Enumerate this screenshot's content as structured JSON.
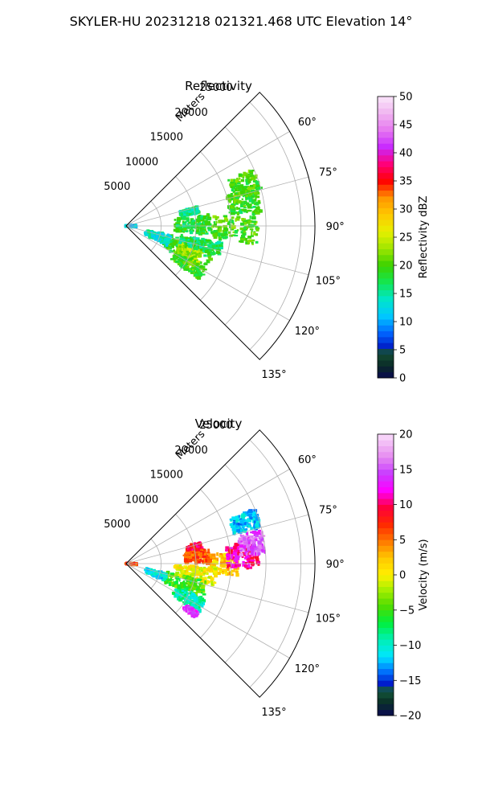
{
  "figure": {
    "suptitle": "SKYLER-HU  20231218  021321.468 UTC Elevation 14°"
  },
  "chart_data": [
    {
      "type": "heatmap",
      "projection": "polar-sector",
      "title": "Reflectivity",
      "radial_label": "Meters",
      "radial_ticks": [
        5000,
        10000,
        15000,
        20000,
        25000
      ],
      "radial_tick_labels": [
        "5000",
        "10000",
        "15000",
        "20000",
        "25000"
      ],
      "rlim": [
        0,
        27000
      ],
      "angle_ticks": [
        60,
        75,
        90,
        105,
        120,
        135
      ],
      "angle_tick_labels": [
        "60°",
        "75°",
        "90°",
        "105°",
        "120°",
        "135°"
      ],
      "angle_range": [
        45,
        135
      ],
      "grid": true,
      "colorbar": {
        "label": "Reflectivity dBZ",
        "range": [
          0,
          50
        ],
        "ticks": [
          0,
          5,
          10,
          15,
          20,
          25,
          30,
          35,
          40,
          45,
          50
        ],
        "tick_labels": [
          "0",
          "5",
          "10",
          "15",
          "20",
          "25",
          "30",
          "35",
          "40",
          "45",
          "50"
        ]
      },
      "echo_regions": [
        {
          "az": [
            84,
            98
          ],
          "r": [
            12000,
            19000
          ],
          "value": 20
        },
        {
          "az": [
            73,
            84
          ],
          "r": [
            15000,
            19500
          ],
          "value": 19
        },
        {
          "az": [
            66,
            76
          ],
          "r": [
            16000,
            20000
          ],
          "value": 20
        },
        {
          "az": [
            82,
            96
          ],
          "r": [
            7000,
            12000
          ],
          "value": 18
        },
        {
          "az": [
            102,
            120
          ],
          "r": [
            6000,
            13000
          ],
          "value": 19
        },
        {
          "az": [
            104,
            118
          ],
          "r": [
            8000,
            11500
          ],
          "value": 23
        },
        {
          "az": [
            118,
            126
          ],
          "r": [
            8000,
            13000
          ],
          "value": 20
        },
        {
          "az": [
            102,
            115
          ],
          "r": [
            3000,
            6500
          ],
          "value": 14
        },
        {
          "az": [
            100,
            108
          ],
          "r": [
            8000,
            14000
          ],
          "value": 17
        },
        {
          "az": [
            86,
            96
          ],
          "r": [
            0,
            1400
          ],
          "value": 11
        },
        {
          "az": [
            75,
            80
          ],
          "r": [
            8000,
            10500
          ],
          "value": 16
        }
      ]
    },
    {
      "type": "heatmap",
      "projection": "polar-sector",
      "title": "Velocity",
      "radial_label": "Meters",
      "radial_ticks": [
        5000,
        10000,
        15000,
        20000,
        25000
      ],
      "radial_tick_labels": [
        "5000",
        "10000",
        "15000",
        "20000",
        "25000"
      ],
      "rlim": [
        0,
        27000
      ],
      "angle_ticks": [
        60,
        75,
        90,
        105,
        120,
        135
      ],
      "angle_tick_labels": [
        "60°",
        "75°",
        "90°",
        "105°",
        "120°",
        "135°"
      ],
      "angle_range": [
        45,
        135
      ],
      "grid": true,
      "colorbar": {
        "label": "Velocity (m/s)",
        "range": [
          -20,
          20
        ],
        "ticks": [
          -20,
          -15,
          -10,
          -5,
          0,
          5,
          10,
          15,
          20
        ],
        "tick_labels": [
          "−20",
          "−15",
          "−10",
          "−5",
          "0",
          "5",
          "10",
          "15",
          "20"
        ]
      },
      "echo_regions": [
        {
          "az": [
            84,
            96
          ],
          "r": [
            12000,
            16000
          ],
          "value": 2
        },
        {
          "az": [
            80,
            92
          ],
          "r": [
            14500,
            19000
          ],
          "value": 11
        },
        {
          "az": [
            76,
            86
          ],
          "r": [
            16500,
            20000
          ],
          "value": 15
        },
        {
          "az": [
            67,
            75
          ],
          "r": [
            16000,
            20000
          ],
          "value": -12
        },
        {
          "az": [
            74,
            80
          ],
          "r": [
            9000,
            11000
          ],
          "value": 9
        },
        {
          "az": [
            80,
            90
          ],
          "r": [
            8500,
            12000
          ],
          "value": 6
        },
        {
          "az": [
            92,
            104
          ],
          "r": [
            7000,
            13000
          ],
          "value": 0
        },
        {
          "az": [
            102,
            116
          ],
          "r": [
            6000,
            12000
          ],
          "value": -5
        },
        {
          "az": [
            114,
            124
          ],
          "r": [
            8000,
            12500
          ],
          "value": -9
        },
        {
          "az": [
            124,
            128
          ],
          "r": [
            10500,
            12500
          ],
          "value": 14
        },
        {
          "az": [
            104,
            114
          ],
          "r": [
            3000,
            6000
          ],
          "value": -11
        },
        {
          "az": [
            88,
            98
          ],
          "r": [
            0,
            1400
          ],
          "value": 7
        }
      ]
    }
  ]
}
